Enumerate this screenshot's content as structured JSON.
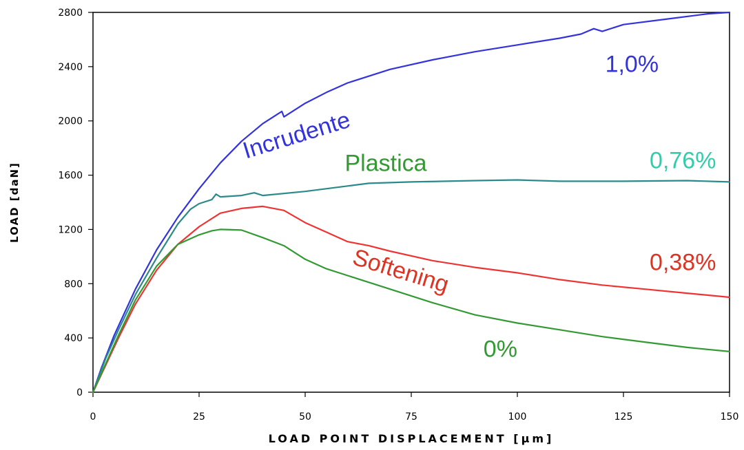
{
  "chart_data": {
    "type": "line",
    "xlabel": "LOAD POINT DISPLACEMENT [μm]",
    "ylabel": "LOAD [daN]",
    "xlim": [
      0,
      150
    ],
    "ylim": [
      0,
      2800
    ],
    "xticks": [
      0,
      25,
      50,
      75,
      100,
      125,
      150
    ],
    "yticks": [
      0,
      400,
      800,
      1200,
      1600,
      2000,
      2400,
      2800
    ],
    "grid": false,
    "legend": "none",
    "series": [
      {
        "color": "#3333dd",
        "points": [
          [
            0,
            0
          ],
          [
            2,
            180
          ],
          [
            5,
            420
          ],
          [
            10,
            760
          ],
          [
            15,
            1050
          ],
          [
            20,
            1290
          ],
          [
            25,
            1500
          ],
          [
            30,
            1690
          ],
          [
            35,
            1850
          ],
          [
            40,
            1980
          ],
          [
            43,
            2040
          ],
          [
            44.5,
            2070
          ],
          [
            45,
            2030
          ],
          [
            50,
            2130
          ],
          [
            55,
            2210
          ],
          [
            60,
            2280
          ],
          [
            70,
            2380
          ],
          [
            80,
            2450
          ],
          [
            90,
            2510
          ],
          [
            100,
            2560
          ],
          [
            110,
            2610
          ],
          [
            115,
            2640
          ],
          [
            118,
            2680
          ],
          [
            120,
            2660
          ],
          [
            125,
            2710
          ],
          [
            135,
            2750
          ],
          [
            145,
            2790
          ],
          [
            150,
            2800
          ]
        ]
      },
      {
        "color": "#2a8a8a",
        "points": [
          [
            0,
            0
          ],
          [
            3,
            250
          ],
          [
            6,
            460
          ],
          [
            10,
            720
          ],
          [
            15,
            990
          ],
          [
            20,
            1240
          ],
          [
            23,
            1350
          ],
          [
            25,
            1390
          ],
          [
            28,
            1420
          ],
          [
            29,
            1460
          ],
          [
            30,
            1440
          ],
          [
            35,
            1450
          ],
          [
            38,
            1470
          ],
          [
            40,
            1450
          ],
          [
            50,
            1480
          ],
          [
            60,
            1520
          ],
          [
            65,
            1540
          ],
          [
            75,
            1550
          ],
          [
            90,
            1560
          ],
          [
            100,
            1565
          ],
          [
            110,
            1555
          ],
          [
            125,
            1555
          ],
          [
            140,
            1560
          ],
          [
            150,
            1550
          ]
        ]
      },
      {
        "color": "#ee3333",
        "points": [
          [
            0,
            0
          ],
          [
            3,
            200
          ],
          [
            6,
            400
          ],
          [
            10,
            650
          ],
          [
            15,
            900
          ],
          [
            20,
            1090
          ],
          [
            25,
            1220
          ],
          [
            30,
            1320
          ],
          [
            35,
            1355
          ],
          [
            40,
            1370
          ],
          [
            45,
            1340
          ],
          [
            50,
            1250
          ],
          [
            55,
            1180
          ],
          [
            60,
            1110
          ],
          [
            65,
            1080
          ],
          [
            70,
            1040
          ],
          [
            80,
            970
          ],
          [
            90,
            920
          ],
          [
            100,
            880
          ],
          [
            110,
            830
          ],
          [
            120,
            790
          ],
          [
            130,
            760
          ],
          [
            140,
            730
          ],
          [
            150,
            700
          ]
        ]
      },
      {
        "color": "#339933",
        "points": [
          [
            0,
            0
          ],
          [
            3,
            210
          ],
          [
            6,
            420
          ],
          [
            10,
            680
          ],
          [
            15,
            930
          ],
          [
            20,
            1090
          ],
          [
            25,
            1160
          ],
          [
            28,
            1190
          ],
          [
            30,
            1200
          ],
          [
            35,
            1195
          ],
          [
            40,
            1140
          ],
          [
            45,
            1080
          ],
          [
            50,
            980
          ],
          [
            55,
            910
          ],
          [
            60,
            860
          ],
          [
            70,
            760
          ],
          [
            80,
            660
          ],
          [
            90,
            570
          ],
          [
            100,
            510
          ],
          [
            110,
            460
          ],
          [
            120,
            410
          ],
          [
            130,
            370
          ],
          [
            140,
            330
          ],
          [
            150,
            300
          ]
        ]
      }
    ],
    "annotations": [
      {
        "text": "1,0%",
        "color": "#3333dd",
        "x": 127,
        "y": 2360
      },
      {
        "text": "Incrudente",
        "color": "#3333dd",
        "x": 48.5,
        "y": 1840,
        "rotate": -17
      },
      {
        "text": "Plastica",
        "color": "#339933",
        "x": 69,
        "y": 1630
      },
      {
        "text": "0,76%",
        "color": "#33ccaa",
        "x": 139,
        "y": 1650
      },
      {
        "text": "Softening",
        "color": "#dd3322",
        "x": 72,
        "y": 840,
        "rotate": 17
      },
      {
        "text": "0,38%",
        "color": "#dd3322",
        "x": 139,
        "y": 900
      },
      {
        "text": "0%",
        "color": "#339933",
        "x": 96,
        "y": 260
      }
    ]
  }
}
